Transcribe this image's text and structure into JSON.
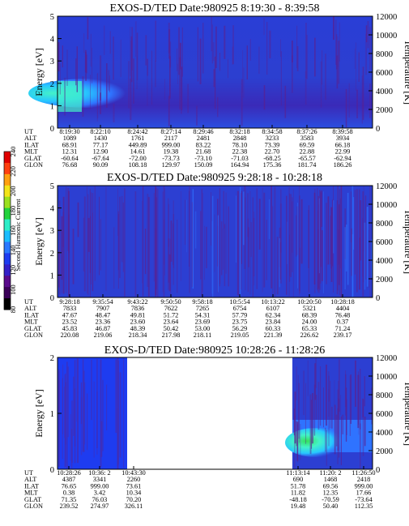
{
  "colors": {
    "background_main": "#2c3fd2",
    "background_alt": "#1e3cf0",
    "streak": "#5a2090",
    "mid": "#2f73ff",
    "high_1": "#27c7ff",
    "high_2": "#43f2c8",
    "high_3": "#34e05a",
    "colorbar": [
      "#000000",
      "#3a0058",
      "#5a0a8c",
      "#3420c8",
      "#1e3cf0",
      "#2a78ff",
      "#1bbdff",
      "#2eeec8",
      "#23d23c",
      "#9be020",
      "#f2e41a",
      "#ffa010",
      "#ff4010",
      "#e00000"
    ]
  },
  "colorbar": {
    "title": "Second Harmonic Current",
    "ticks": [
      "80",
      "100",
      "120",
      "140",
      "160",
      "180",
      "200",
      "220",
      "240"
    ]
  },
  "row_labels": [
    "UT",
    "ALT",
    "ILAT",
    "MLT",
    "GLAT",
    "GLON"
  ],
  "chart_data": [
    {
      "type": "heatmap",
      "title": "EXOS-D/TED   Date:980925   8:19:30 - 8:39:58",
      "ylabel": "Energy [eV]",
      "y2label": "Temperature [K]",
      "ylim": [
        0,
        5
      ],
      "y_ticks": [
        "0",
        "1",
        "2",
        "3",
        "4",
        "5"
      ],
      "y2lim": [
        0,
        12000
      ],
      "y2_ticks": [
        "0",
        "2000",
        "4000",
        "6000",
        "8000",
        "10000",
        "12000"
      ],
      "columns": [
        {
          "UT": "8:19:30",
          "ALT": "1089",
          "ILAT": "68.91",
          "MLT": "12.31",
          "GLAT": "-60.64",
          "GLON": "76.68"
        },
        {
          "UT": "8:22:10",
          "ALT": "1430",
          "ILAT": "77.17",
          "MLT": "12.90",
          "GLAT": "-67.64",
          "GLON": "90.09"
        },
        {
          "UT": "8:24:42",
          "ALT": "1761",
          "ILAT": "449.89",
          "MLT": "14.61",
          "GLAT": "-72.00",
          "GLON": "108.18"
        },
        {
          "UT": "8:27:14",
          "ALT": "2117",
          "ILAT": "999.00",
          "MLT": "19.38",
          "GLAT": "-73.73",
          "GLON": "129.97"
        },
        {
          "UT": "8:29:46",
          "ALT": "2481",
          "ILAT": "83.22",
          "MLT": "21.68",
          "GLAT": "-73.10",
          "GLON": "150.09"
        },
        {
          "UT": "8:32:18",
          "ALT": "2848",
          "ILAT": "78.10",
          "MLT": "22.38",
          "GLAT": "-71.03",
          "GLON": "164.94"
        },
        {
          "UT": "8:34:58",
          "ALT": "3233",
          "ILAT": "73.39",
          "MLT": "22.70",
          "GLAT": "-68.25",
          "GLON": "175.36"
        },
        {
          "UT": "8:37:26",
          "ALT": "3583",
          "ILAT": "69.59",
          "MLT": "22.88",
          "GLAT": "-65.57",
          "GLON": "181.74"
        },
        {
          "UT": "8:39:58",
          "ALT": "3934",
          "ILAT": "66.18",
          "MLT": "22.99",
          "GLAT": "-62.94",
          "GLON": "186.26"
        }
      ]
    },
    {
      "type": "heatmap",
      "title": "EXOS-D/TED   Date:980925   9:28:18 - 10:28:18",
      "ylabel": "Energy [eV]",
      "y2label": "Temperature [K]",
      "ylim": [
        0,
        5
      ],
      "y_ticks": [
        "0",
        "1",
        "2",
        "3",
        "4",
        "5"
      ],
      "y2lim": [
        0,
        12000
      ],
      "y2_ticks": [
        "0",
        "2000",
        "4000",
        "6000",
        "8000",
        "10000",
        "12000"
      ],
      "columns": [
        {
          "UT": "9:28:18",
          "ALT": "7833",
          "ILAT": "47.67",
          "MLT": "23.52",
          "GLAT": "45.83",
          "GLON": "220.08"
        },
        {
          "UT": "9:35:54",
          "ALT": "7907",
          "ILAT": "48.47",
          "MLT": "23.36",
          "GLAT": "46.87",
          "GLON": "219.06"
        },
        {
          "UT": "9:43:22",
          "ALT": "7836",
          "ILAT": "49.81",
          "MLT": "23.60",
          "GLAT": "48.39",
          "GLON": "218.34"
        },
        {
          "UT": "9:50:50",
          "ALT": "7622",
          "ILAT": "51.72",
          "MLT": "23.64",
          "GLAT": "50.42",
          "GLON": "217.98"
        },
        {
          "UT": "9:58:18",
          "ALT": "7265",
          "ILAT": "54.31",
          "MLT": "23.69",
          "GLAT": "53.00",
          "GLON": "218.11"
        },
        {
          "UT": "10:5:54",
          "ALT": "6754",
          "ILAT": "57.79",
          "MLT": "23.75",
          "GLAT": "56.29",
          "GLON": "219.05"
        },
        {
          "UT": "10:13:22",
          "ALT": "6107",
          "ILAT": "62.34",
          "MLT": "23.84",
          "GLAT": "60.33",
          "GLON": "221.39"
        },
        {
          "UT": "10:20:50",
          "ALT": "5321",
          "ILAT": "68.39",
          "MLT": "24.00",
          "GLAT": "65.33",
          "GLON": "226.62"
        },
        {
          "UT": "10:28:18",
          "ALT": "4404",
          "ILAT": "76.48",
          "MLT": "0.37",
          "GLAT": "71.24",
          "GLON": "239.17"
        }
      ]
    },
    {
      "type": "heatmap",
      "title": "EXOS-D/TED   Date:980925   10:28:26 - 11:28:26",
      "ylabel": "Energy [eV]",
      "y2label": "Temperature [K]",
      "ylim": [
        0,
        2
      ],
      "y_ticks": [
        "0",
        "1",
        "2"
      ],
      "y2lim": [
        0,
        12000
      ],
      "y2_ticks": [
        "0",
        "2000",
        "4000",
        "6000",
        "8000",
        "10000",
        "12000"
      ],
      "columns": [
        {
          "UT": "10:28:26",
          "ALT": "4387",
          "ILAT": "76.65",
          "MLT": "0.38",
          "GLAT": "71.35",
          "GLON": "239.52"
        },
        {
          "UT": "10:36: 2",
          "ALT": "3341",
          "ILAT": "999.00",
          "MLT": "3.42",
          "GLAT": "76.03",
          "GLON": "274.97"
        },
        {
          "UT": "10:43:30",
          "ALT": "2260",
          "ILAT": "73.61",
          "MLT": "10.34",
          "GLAT": "70.20",
          "GLON": "326.11"
        },
        {
          "UT": "11:13:14",
          "ALT": "690",
          "ILAT": "51.78",
          "MLT": "11.82",
          "GLAT": "-48.18",
          "GLON": "19.48"
        },
        {
          "UT": "11:20: 2",
          "ALT": "1468",
          "ILAT": "69.56",
          "MLT": "12.35",
          "GLAT": "-70.59",
          "GLON": "50.40"
        },
        {
          "UT": "11:26:50",
          "ALT": "2418",
          "ILAT": "999.00",
          "MLT": "17.66",
          "GLAT": "-73.64",
          "GLON": "112.35"
        }
      ]
    }
  ]
}
